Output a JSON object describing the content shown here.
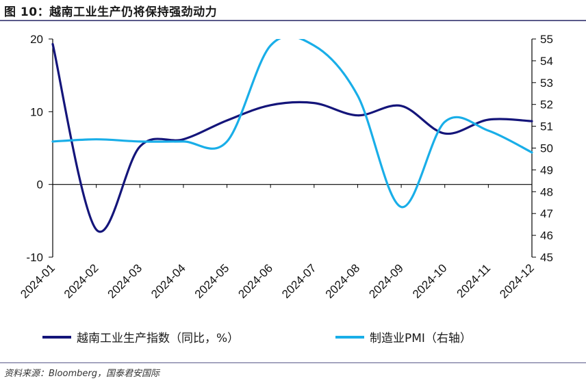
{
  "title": "图 10：越南工业生产仍将保持强劲动力",
  "source": "资料来源：Bloomberg，国泰君安国际",
  "colors": {
    "series1": "#14157a",
    "series2": "#19aee8",
    "axis": "#000000",
    "rule": "#5a5a8a"
  },
  "chart_data": {
    "type": "line",
    "categories": [
      "2024-01",
      "2024-02",
      "2024-03",
      "2024-04",
      "2024-05",
      "2024-06",
      "2024-07",
      "2024-08",
      "2024-09",
      "2024-10",
      "2024-11",
      "2024-12"
    ],
    "y_left": {
      "range": [
        -10,
        20
      ],
      "ticks": [
        "20",
        "10",
        "0",
        "-10"
      ],
      "tick_values": [
        20,
        10,
        0,
        -10
      ]
    },
    "y_right": {
      "range": [
        45,
        55
      ],
      "ticks": [
        "55",
        "54",
        "53",
        "52",
        "51",
        "50",
        "49",
        "48",
        "47",
        "46",
        "45"
      ],
      "tick_values": [
        55,
        54,
        53,
        52,
        51,
        50,
        49,
        48,
        47,
        46,
        45
      ]
    },
    "series": [
      {
        "name": "越南工业生产指数（同比，%）",
        "axis": "left",
        "values": [
          19.3,
          -6.2,
          5.2,
          6.2,
          8.8,
          10.9,
          11.2,
          9.5,
          10.8,
          7.0,
          8.9,
          8.7
        ]
      },
      {
        "name": "制造业PMI（右轴）",
        "axis": "right",
        "values": [
          50.3,
          50.4,
          50.3,
          50.3,
          50.3,
          54.7,
          54.7,
          52.4,
          47.3,
          51.2,
          50.8,
          49.8
        ]
      }
    ],
    "grid": false,
    "legend": "bottom"
  }
}
